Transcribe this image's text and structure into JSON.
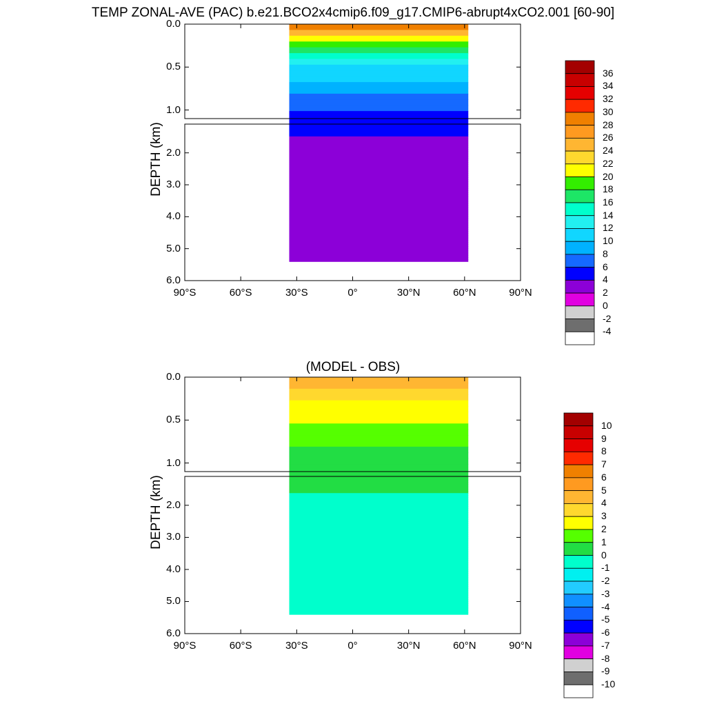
{
  "chart_data": [
    {
      "type": "heatmap",
      "title": "TEMP ZONAL-AVE (PAC) b.e21.BCO2x4cmip6.f09_g17.CMIP6-abrupt4xCO2.001 [60-90]",
      "ylabel": "DEPTH (km)",
      "xlabel": "",
      "x_ticks": [
        "90°S",
        "60°S",
        "30°S",
        "0°",
        "30°N",
        "60°N",
        "90°N"
      ],
      "x_range": [
        -90,
        90
      ],
      "upper_panel": {
        "y_range": [
          0,
          1.1
        ],
        "y_ticks": [
          "0.0",
          "0.5",
          "1.0"
        ]
      },
      "lower_panel": {
        "y_range": [
          1.1,
          6.0
        ],
        "y_ticks": [
          "2.0",
          "3.0",
          "4.0",
          "5.0",
          "6.0"
        ]
      },
      "data_extent": {
        "lat_min": -34,
        "lat_max": 62,
        "max_depth_km": 5.4
      },
      "colorbar": {
        "labels": [
          "36",
          "34",
          "32",
          "30",
          "28",
          "26",
          "24",
          "22",
          "20",
          "18",
          "16",
          "14",
          "12",
          "10",
          "8",
          "6",
          "4",
          "2",
          "0",
          "-2",
          "-4"
        ],
        "colors": [
          "#a30000",
          "#c80000",
          "#e60000",
          "#ff2a00",
          "#f08000",
          "#ff9a20",
          "#ffb632",
          "#ffd82e",
          "#ffff00",
          "#33ee00",
          "#1de666",
          "#00ffcc",
          "#22f0f0",
          "#11d6ff",
          "#00b2ff",
          "#1569ff",
          "#0000ff",
          "#8c00d8",
          "#e100e1",
          "#d0d0d0",
          "#6e6e6e",
          "#ffffff"
        ]
      },
      "field_summary": [
        {
          "depth_km": 0.0,
          "value": 30
        },
        {
          "depth_km": 0.2,
          "value": 20
        },
        {
          "depth_km": 0.5,
          "value": 12
        },
        {
          "depth_km": 1.0,
          "value": 6
        },
        {
          "depth_km": 1.5,
          "value": 4
        },
        {
          "depth_km": 3.0,
          "value": 2
        }
      ]
    },
    {
      "type": "heatmap",
      "title": "(MODEL - OBS)",
      "ylabel": "DEPTH (km)",
      "x_ticks": [
        "90°S",
        "60°S",
        "30°S",
        "0°",
        "30°N",
        "60°N",
        "90°N"
      ],
      "x_range": [
        -90,
        90
      ],
      "upper_panel": {
        "y_range": [
          0,
          1.1
        ],
        "y_ticks": [
          "0.0",
          "0.5",
          "1.0"
        ]
      },
      "lower_panel": {
        "y_range": [
          1.1,
          6.0
        ],
        "y_ticks": [
          "2.0",
          "3.0",
          "4.0",
          "5.0",
          "6.0"
        ]
      },
      "data_extent": {
        "lat_min": -34,
        "lat_max": 62,
        "max_depth_km": 5.4
      },
      "colorbar": {
        "labels": [
          "10",
          "9",
          "8",
          "7",
          "6",
          "5",
          "4",
          "3",
          "2",
          "1",
          "0",
          "-1",
          "-2",
          "-3",
          "-4",
          "-5",
          "-6",
          "-7",
          "-8",
          "-9",
          "-10"
        ],
        "colors": [
          "#a30000",
          "#c80000",
          "#e60000",
          "#ff2a00",
          "#f08000",
          "#ff9a20",
          "#ffb632",
          "#ffd82e",
          "#ffff00",
          "#55ff00",
          "#22dd44",
          "#00ffcc",
          "#00f0f0",
          "#22ccff",
          "#1090ff",
          "#1060ff",
          "#0000ff",
          "#8c00d8",
          "#e100e1",
          "#d0d0d0",
          "#6e6e6e",
          "#ffffff"
        ]
      },
      "field_summary": [
        {
          "depth_km": 0.0,
          "value": 5
        },
        {
          "depth_km": 0.3,
          "value": 3
        },
        {
          "depth_km": 0.8,
          "value": 1
        },
        {
          "depth_km": 2.5,
          "value": -1
        }
      ]
    }
  ]
}
